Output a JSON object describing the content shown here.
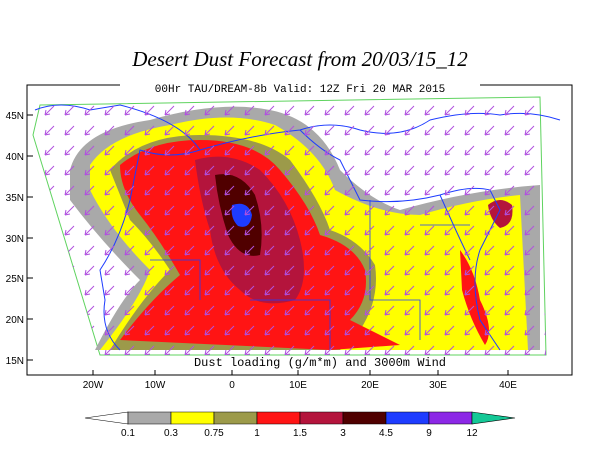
{
  "title": "Desert Dust Forecast from 20/03/15_12",
  "subtitle": "00Hr TAU/DREAM-8b Valid: 12Z Fri 20 MAR 2015",
  "caption": "Dust loading (g/m*m) and 3000m Wind",
  "lat_labels": [
    "45N",
    "40N",
    "35N",
    "30N",
    "25N",
    "20N",
    "15N"
  ],
  "lon_labels": [
    "20W",
    "10W",
    "0",
    "10E",
    "20E",
    "30E",
    "40E"
  ],
  "colorbar": {
    "colors": [
      "#ffffff",
      "#a9a9a9",
      "#ffff00",
      "#9c9a4a",
      "#ff1414",
      "#b4143c",
      "#500000",
      "#1e3cff",
      "#8c28e6",
      "#14c896"
    ],
    "ticks": [
      "0.1",
      "0.3",
      "0.75",
      "1",
      "1.5",
      "3",
      "4.5",
      "9",
      "12"
    ]
  }
}
